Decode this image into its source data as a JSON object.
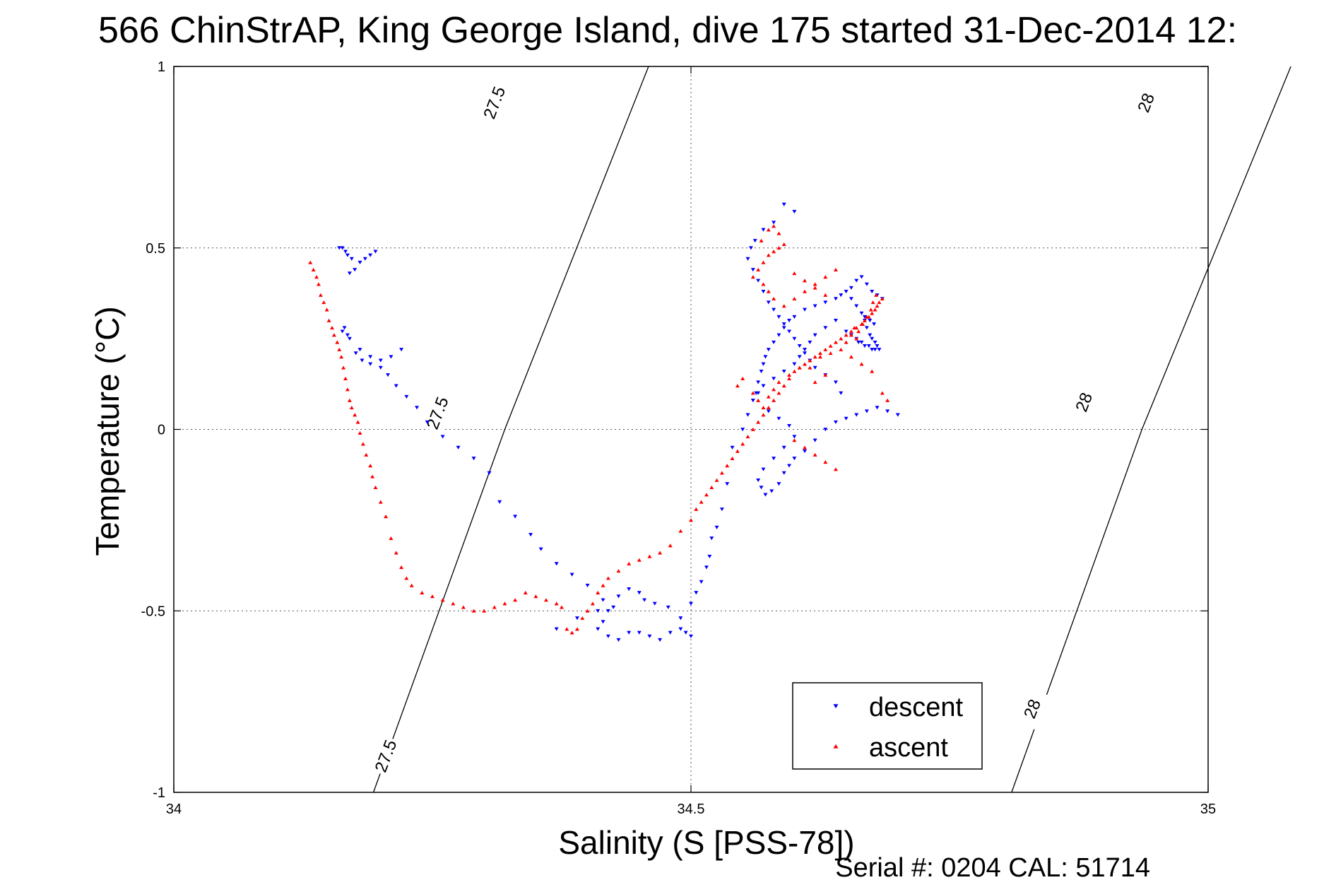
{
  "chart_data": {
    "type": "scatter",
    "title": "566 ChinStrAP, King George Island, dive 175 started 31-Dec-2014 12:",
    "xlabel": "Salinity (S [PSS-78])",
    "ylabel": "Temperature (°C)",
    "xlim": [
      34,
      35
    ],
    "ylim": [
      -1,
      1
    ],
    "xticks": [
      34,
      34.5,
      35
    ],
    "xtick_labels": [
      "34",
      "34.5",
      "35"
    ],
    "yticks": [
      -1,
      -0.5,
      0,
      0.5,
      1
    ],
    "ytick_labels": [
      "-1",
      "-0.5",
      "0",
      "0.5",
      "1"
    ],
    "grid": true,
    "legend_position": "bottom-right",
    "footer": "Serial #: 0204  CAL: 51714",
    "density_contours": [
      {
        "label": "27.5",
        "points": [
          [
            34.193,
            -1.0
          ],
          [
            34.32,
            0.0
          ],
          [
            34.459,
            1.0
          ]
        ],
        "label_positions": [
          [
            34.205,
            -0.9
          ],
          [
            34.255,
            0.045
          ],
          [
            34.31,
            0.9
          ]
        ]
      },
      {
        "label": "28",
        "points": [
          [
            34.81,
            -1.0
          ],
          [
            34.936,
            0.0
          ],
          [
            35.08,
            1.0
          ]
        ],
        "label_positions": [
          [
            34.83,
            -0.77
          ],
          [
            34.88,
            0.075
          ],
          [
            34.94,
            0.9
          ]
        ]
      }
    ],
    "series": [
      {
        "name": "descent",
        "color": "#0000ff",
        "marker": "triangle-down",
        "x": [
          34.16,
          34.163,
          34.166,
          34.168,
          34.172,
          34.18,
          34.17,
          34.185,
          34.19,
          34.195,
          34.175,
          34.165,
          34.163,
          34.168,
          34.17,
          34.18,
          34.19,
          34.2,
          34.21,
          34.22,
          34.176,
          34.182,
          34.19,
          34.2,
          34.207,
          34.215,
          34.225,
          34.235,
          34.245,
          34.26,
          34.275,
          34.29,
          34.305,
          34.315,
          34.33,
          34.345,
          34.355,
          34.37,
          34.385,
          34.4,
          34.415,
          34.42,
          34.415,
          34.41,
          34.42,
          34.43,
          34.44,
          34.45,
          34.46,
          34.47,
          34.48,
          34.49,
          34.495,
          34.5,
          34.49,
          34.478,
          34.465,
          34.455,
          34.45,
          34.44,
          34.43,
          34.425,
          34.41,
          34.39,
          34.37,
          34.5,
          34.505,
          34.51,
          34.515,
          34.518,
          34.52,
          34.525,
          34.53,
          34.535,
          34.54,
          34.55,
          34.555,
          34.56,
          34.563,
          34.565,
          34.568,
          34.57,
          34.572,
          34.575,
          34.58,
          34.585,
          34.59,
          34.595,
          34.6,
          34.61,
          34.62,
          34.63,
          34.64,
          34.645,
          34.65,
          34.655,
          34.66,
          34.665,
          34.668,
          34.67,
          34.673,
          34.675,
          34.678,
          34.68,
          34.682,
          34.65,
          34.655,
          34.66,
          34.662,
          34.665,
          34.668,
          34.672,
          34.675,
          34.678,
          34.64,
          34.63,
          34.62,
          34.615,
          34.61,
          34.605,
          34.6,
          34.59,
          34.58,
          34.57,
          34.565,
          34.56,
          34.575,
          34.585,
          34.595,
          34.6,
          34.59,
          34.58,
          34.57,
          34.565,
          34.568,
          34.572,
          34.578,
          34.585,
          34.59,
          34.595,
          34.6,
          34.61,
          34.62,
          34.63,
          34.64,
          34.65,
          34.66,
          34.67,
          34.68,
          34.69,
          34.7,
          34.655,
          34.66,
          34.665,
          34.67,
          34.675,
          34.68,
          34.685,
          34.668,
          34.673,
          34.677,
          34.6,
          34.59,
          34.58,
          34.57,
          34.562,
          34.558,
          34.555,
          34.56,
          34.565,
          34.57,
          34.575,
          34.58,
          34.585,
          34.59,
          34.595,
          34.6,
          34.605,
          34.61,
          34.615,
          34.62,
          34.63,
          34.64,
          34.645
        ],
        "y": [
          0.5,
          0.5,
          0.49,
          0.48,
          0.47,
          0.46,
          0.43,
          0.47,
          0.48,
          0.49,
          0.44,
          0.28,
          0.27,
          0.26,
          0.25,
          0.22,
          0.2,
          0.19,
          0.2,
          0.22,
          0.21,
          0.19,
          0.18,
          0.17,
          0.15,
          0.12,
          0.09,
          0.06,
          0.02,
          -0.02,
          -0.05,
          -0.08,
          -0.12,
          -0.2,
          -0.24,
          -0.29,
          -0.33,
          -0.37,
          -0.4,
          -0.43,
          -0.47,
          -0.5,
          -0.53,
          -0.55,
          -0.57,
          -0.58,
          -0.56,
          -0.56,
          -0.57,
          -0.58,
          -0.56,
          -0.55,
          -0.56,
          -0.57,
          -0.52,
          -0.49,
          -0.48,
          -0.47,
          -0.45,
          -0.44,
          -0.46,
          -0.49,
          -0.5,
          -0.52,
          -0.55,
          -0.48,
          -0.45,
          -0.42,
          -0.38,
          -0.35,
          -0.3,
          -0.27,
          -0.22,
          -0.15,
          -0.05,
          0.0,
          0.04,
          0.08,
          0.1,
          0.13,
          0.16,
          0.18,
          0.2,
          0.22,
          0.24,
          0.26,
          0.28,
          0.3,
          0.31,
          0.33,
          0.34,
          0.35,
          0.36,
          0.37,
          0.38,
          0.36,
          0.34,
          0.32,
          0.3,
          0.28,
          0.26,
          0.25,
          0.24,
          0.23,
          0.22,
          0.27,
          0.26,
          0.25,
          0.24,
          0.24,
          0.23,
          0.23,
          0.22,
          0.22,
          0.3,
          0.28,
          0.26,
          0.24,
          0.22,
          0.2,
          0.18,
          0.16,
          0.14,
          0.12,
          0.1,
          0.08,
          0.05,
          0.03,
          0.01,
          -0.02,
          -0.05,
          -0.08,
          -0.11,
          -0.14,
          -0.16,
          -0.18,
          -0.17,
          -0.15,
          -0.12,
          -0.1,
          -0.08,
          -0.06,
          -0.03,
          0.0,
          0.02,
          0.03,
          0.04,
          0.05,
          0.06,
          0.05,
          0.04,
          0.39,
          0.41,
          0.42,
          0.4,
          0.38,
          0.37,
          0.36,
          0.31,
          0.3,
          0.29,
          0.6,
          0.62,
          0.57,
          0.55,
          0.52,
          0.5,
          0.47,
          0.44,
          0.41,
          0.38,
          0.35,
          0.33,
          0.31,
          0.29,
          0.27,
          0.25,
          0.23,
          0.21,
          0.19,
          0.17,
          0.15,
          0.13,
          0.1
        ]
      },
      {
        "name": "ascent",
        "color": "#ff0000",
        "marker": "triangle-up",
        "x": [
          34.132,
          34.135,
          34.138,
          34.14,
          34.142,
          34.145,
          34.148,
          34.15,
          34.153,
          34.155,
          34.158,
          34.16,
          34.162,
          34.164,
          34.166,
          34.168,
          34.17,
          34.172,
          34.175,
          34.178,
          34.18,
          34.183,
          34.186,
          34.19,
          34.192,
          34.195,
          34.2,
          34.205,
          34.21,
          34.215,
          34.22,
          34.225,
          34.23,
          34.24,
          34.25,
          34.26,
          34.27,
          34.28,
          34.29,
          34.3,
          34.31,
          34.32,
          34.33,
          34.34,
          34.35,
          34.36,
          34.37,
          34.375,
          34.38,
          34.385,
          34.39,
          34.395,
          34.4,
          34.405,
          34.41,
          34.415,
          34.42,
          34.43,
          34.44,
          34.45,
          34.46,
          34.47,
          34.48,
          34.49,
          34.5,
          34.505,
          34.51,
          34.515,
          34.52,
          34.525,
          34.53,
          34.535,
          34.54,
          34.545,
          34.55,
          34.555,
          34.56,
          34.565,
          34.57,
          34.575,
          34.58,
          34.585,
          34.59,
          34.595,
          34.6,
          34.605,
          34.61,
          34.615,
          34.62,
          34.625,
          34.63,
          34.635,
          34.64,
          34.645,
          34.65,
          34.655,
          34.66,
          34.665,
          34.668,
          34.672,
          34.675,
          34.678,
          34.68,
          34.682,
          34.685,
          34.66,
          34.662,
          34.666,
          34.67,
          34.674,
          34.676,
          34.679,
          34.65,
          34.655,
          34.658,
          34.568,
          34.575,
          34.58,
          34.585,
          34.59,
          34.57,
          34.575,
          34.58,
          34.585,
          34.565,
          34.56,
          34.57,
          34.575,
          34.58,
          34.59,
          34.6,
          34.61,
          34.62,
          34.63,
          34.64,
          34.6,
          34.61,
          34.62,
          34.63,
          34.55,
          34.545,
          34.56,
          34.565,
          34.57,
          34.575,
          34.58,
          34.585,
          34.595,
          34.605,
          34.615,
          34.625,
          34.635,
          34.645,
          34.655,
          34.665,
          34.675,
          34.685,
          34.69,
          34.6,
          34.61,
          34.62,
          34.63,
          34.64,
          34.62,
          34.63,
          34.615
        ],
        "y": [
          0.46,
          0.44,
          0.42,
          0.4,
          0.37,
          0.35,
          0.33,
          0.3,
          0.28,
          0.26,
          0.24,
          0.22,
          0.2,
          0.17,
          0.14,
          0.11,
          0.08,
          0.06,
          0.04,
          0.02,
          -0.01,
          -0.04,
          -0.07,
          -0.1,
          -0.13,
          -0.16,
          -0.2,
          -0.24,
          -0.3,
          -0.34,
          -0.38,
          -0.41,
          -0.43,
          -0.45,
          -0.46,
          -0.47,
          -0.48,
          -0.49,
          -0.5,
          -0.5,
          -0.49,
          -0.48,
          -0.47,
          -0.45,
          -0.46,
          -0.47,
          -0.48,
          -0.49,
          -0.55,
          -0.56,
          -0.55,
          -0.52,
          -0.5,
          -0.48,
          -0.45,
          -0.43,
          -0.41,
          -0.39,
          -0.37,
          -0.36,
          -0.35,
          -0.34,
          -0.32,
          -0.28,
          -0.25,
          -0.22,
          -0.2,
          -0.18,
          -0.16,
          -0.14,
          -0.12,
          -0.1,
          -0.08,
          -0.06,
          -0.04,
          -0.02,
          0.0,
          0.02,
          0.04,
          0.06,
          0.08,
          0.1,
          0.12,
          0.14,
          0.16,
          0.17,
          0.18,
          0.19,
          0.2,
          0.21,
          0.22,
          0.23,
          0.24,
          0.25,
          0.26,
          0.27,
          0.28,
          0.29,
          0.3,
          0.31,
          0.32,
          0.33,
          0.34,
          0.35,
          0.36,
          0.25,
          0.27,
          0.29,
          0.31,
          0.33,
          0.35,
          0.37,
          0.24,
          0.26,
          0.28,
          0.52,
          0.55,
          0.56,
          0.54,
          0.51,
          0.46,
          0.48,
          0.49,
          0.5,
          0.44,
          0.42,
          0.4,
          0.38,
          0.36,
          0.34,
          0.36,
          0.38,
          0.4,
          0.42,
          0.44,
          0.43,
          0.41,
          0.39,
          0.37,
          0.14,
          0.12,
          0.1,
          0.08,
          0.06,
          0.09,
          0.11,
          0.13,
          0.15,
          0.17,
          0.19,
          0.2,
          0.21,
          0.22,
          0.2,
          0.18,
          0.16,
          0.1,
          0.08,
          -0.03,
          -0.05,
          -0.07,
          -0.09,
          -0.11,
          0.13,
          0.15,
          0.17
        ]
      }
    ]
  }
}
